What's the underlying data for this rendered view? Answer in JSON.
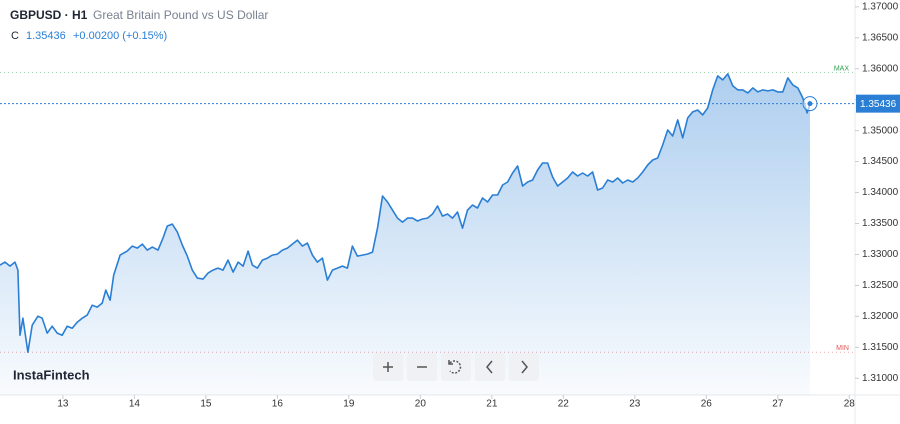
{
  "header": {
    "symbol": "GBPUSD · H1",
    "description": "Great Britain Pound vs US Dollar",
    "close_label": "C",
    "change": "+0.00200 (+0.15%)"
  },
  "watermark": "InstaFintech",
  "chart_data": {
    "type": "area",
    "color": "#2a7fd5",
    "xlim": [
      -0.88,
      11.08
    ],
    "ylim": [
      1.3073,
      1.3711
    ],
    "xticks": [
      {
        "value": 0,
        "label": "13"
      },
      {
        "value": 1,
        "label": "14"
      },
      {
        "value": 2,
        "label": "15"
      },
      {
        "value": 3,
        "label": "16"
      },
      {
        "value": 4,
        "label": "19"
      },
      {
        "value": 5,
        "label": "20"
      },
      {
        "value": 6,
        "label": "21"
      },
      {
        "value": 7,
        "label": "22"
      },
      {
        "value": 8,
        "label": "23"
      },
      {
        "value": 9,
        "label": "26"
      },
      {
        "value": 10,
        "label": "27"
      },
      {
        "value": 11,
        "label": "28"
      }
    ],
    "yticks": [
      {
        "value": 1.37,
        "label": "1.37000"
      },
      {
        "value": 1.365,
        "label": "1.36500"
      },
      {
        "value": 1.36,
        "label": "1.36000"
      },
      {
        "value": 1.355,
        "label": "1.35500"
      },
      {
        "value": 1.35,
        "label": "1.35000"
      },
      {
        "value": 1.345,
        "label": "1.34500"
      },
      {
        "value": 1.34,
        "label": "1.34000"
      },
      {
        "value": 1.335,
        "label": "1.33500"
      },
      {
        "value": 1.33,
        "label": "1.33000"
      },
      {
        "value": 1.325,
        "label": "1.32500"
      },
      {
        "value": 1.32,
        "label": "1.32000"
      },
      {
        "value": 1.315,
        "label": "1.31500"
      },
      {
        "value": 1.31,
        "label": "1.31000"
      }
    ],
    "last": 1.35436,
    "max_line": {
      "value": 1.3594,
      "label": "MAX"
    },
    "min_line": {
      "value": 1.3142,
      "label": "MIN"
    },
    "x": [
      -0.88,
      -0.81,
      -0.74,
      -0.67,
      -0.63,
      -0.6,
      -0.56,
      -0.49,
      -0.43,
      -0.35,
      -0.29,
      -0.22,
      -0.15,
      -0.08,
      -0.01,
      0.06,
      0.13,
      0.2,
      0.27,
      0.34,
      0.41,
      0.48,
      0.55,
      0.6,
      0.66,
      0.71,
      0.8,
      0.9,
      0.97,
      1.04,
      1.11,
      1.18,
      1.25,
      1.33,
      1.4,
      1.46,
      1.53,
      1.6,
      1.67,
      1.74,
      1.81,
      1.88,
      1.96,
      2.03,
      2.1,
      2.17,
      2.24,
      2.31,
      2.38,
      2.45,
      2.52,
      2.59,
      2.65,
      2.72,
      2.79,
      2.86,
      2.93,
      3.0,
      3.07,
      3.14,
      3.21,
      3.28,
      3.35,
      3.42,
      3.49,
      3.56,
      3.63,
      3.7,
      3.77,
      3.84,
      3.91,
      3.98,
      4.05,
      4.12,
      4.19,
      4.26,
      4.33,
      4.4,
      4.47,
      4.54,
      4.61,
      4.68,
      4.75,
      4.82,
      4.89,
      4.96,
      5.03,
      5.1,
      5.17,
      5.24,
      5.31,
      5.38,
      5.45,
      5.52,
      5.59,
      5.66,
      5.73,
      5.8,
      5.87,
      5.94,
      6.01,
      6.08,
      6.15,
      6.22,
      6.29,
      6.36,
      6.43,
      6.5,
      6.57,
      6.64,
      6.71,
      6.78,
      6.85,
      6.92,
      6.99,
      7.06,
      7.13,
      7.2,
      7.27,
      7.34,
      7.41,
      7.48,
      7.55,
      7.62,
      7.69,
      7.76,
      7.83,
      7.9,
      7.97,
      8.04,
      8.11,
      8.18,
      8.25,
      8.32,
      8.39,
      8.46,
      8.53,
      8.6,
      8.67,
      8.74,
      8.81,
      8.88,
      8.95,
      9.02,
      9.09,
      9.16,
      9.23,
      9.3,
      9.37,
      9.44,
      9.51,
      9.58,
      9.65,
      9.72,
      9.79,
      9.86,
      9.93,
      10.0,
      10.07,
      10.14,
      10.21,
      10.28,
      10.35,
      10.41,
      10.45
    ],
    "values": [
      1.32828,
      1.32877,
      1.32812,
      1.32877,
      1.32747,
      1.31696,
      1.31971,
      1.31421,
      1.31858,
      1.32003,
      1.31971,
      1.31729,
      1.31842,
      1.31729,
      1.31696,
      1.31842,
      1.31809,
      1.31906,
      1.31971,
      1.3202,
      1.32181,
      1.32149,
      1.32214,
      1.32424,
      1.32262,
      1.32666,
      1.3299,
      1.33055,
      1.33135,
      1.33103,
      1.33168,
      1.33071,
      1.33119,
      1.33071,
      1.33265,
      1.33459,
      1.33491,
      1.33362,
      1.33152,
      1.32974,
      1.32747,
      1.32618,
      1.32602,
      1.32699,
      1.32747,
      1.3278,
      1.32747,
      1.32909,
      1.32715,
      1.32877,
      1.32812,
      1.33055,
      1.32828,
      1.3278,
      1.32909,
      1.32941,
      1.3299,
      1.33006,
      1.33071,
      1.33103,
      1.33168,
      1.33232,
      1.33135,
      1.33184,
      1.3299,
      1.32877,
      1.32941,
      1.32586,
      1.32747,
      1.3278,
      1.32812,
      1.3278,
      1.33135,
      1.32974,
      1.3299,
      1.33006,
      1.33038,
      1.33426,
      1.33944,
      1.33847,
      1.33717,
      1.33588,
      1.33523,
      1.33588,
      1.33588,
      1.3354,
      1.33572,
      1.33588,
      1.33653,
      1.33782,
      1.3362,
      1.33653,
      1.33588,
      1.33685,
      1.33426,
      1.33717,
      1.33798,
      1.3375,
      1.33912,
      1.33847,
      1.3396,
      1.3396,
      1.34122,
      1.3417,
      1.34316,
      1.34429,
      1.34106,
      1.3417,
      1.34203,
      1.34364,
      1.34477,
      1.34477,
      1.34251,
      1.34106,
      1.3417,
      1.34235,
      1.34332,
      1.34267,
      1.34316,
      1.34267,
      1.34332,
      1.34041,
      1.34073,
      1.34203,
      1.3417,
      1.34235,
      1.34154,
      1.34203,
      1.3417,
      1.34235,
      1.34332,
      1.34445,
      1.34526,
      1.34558,
      1.34769,
      1.35011,
      1.34914,
      1.35173,
      1.34882,
      1.35205,
      1.35302,
      1.35334,
      1.35254,
      1.35367,
      1.35658,
      1.35884,
      1.3582,
      1.35917,
      1.35723,
      1.35658,
      1.35658,
      1.35609,
      1.3569,
      1.35626,
      1.35658,
      1.35642,
      1.35658,
      1.35626,
      1.35626,
      1.35852,
      1.35739,
      1.3569,
      1.35529,
      1.35286,
      1.35436
    ]
  }
}
